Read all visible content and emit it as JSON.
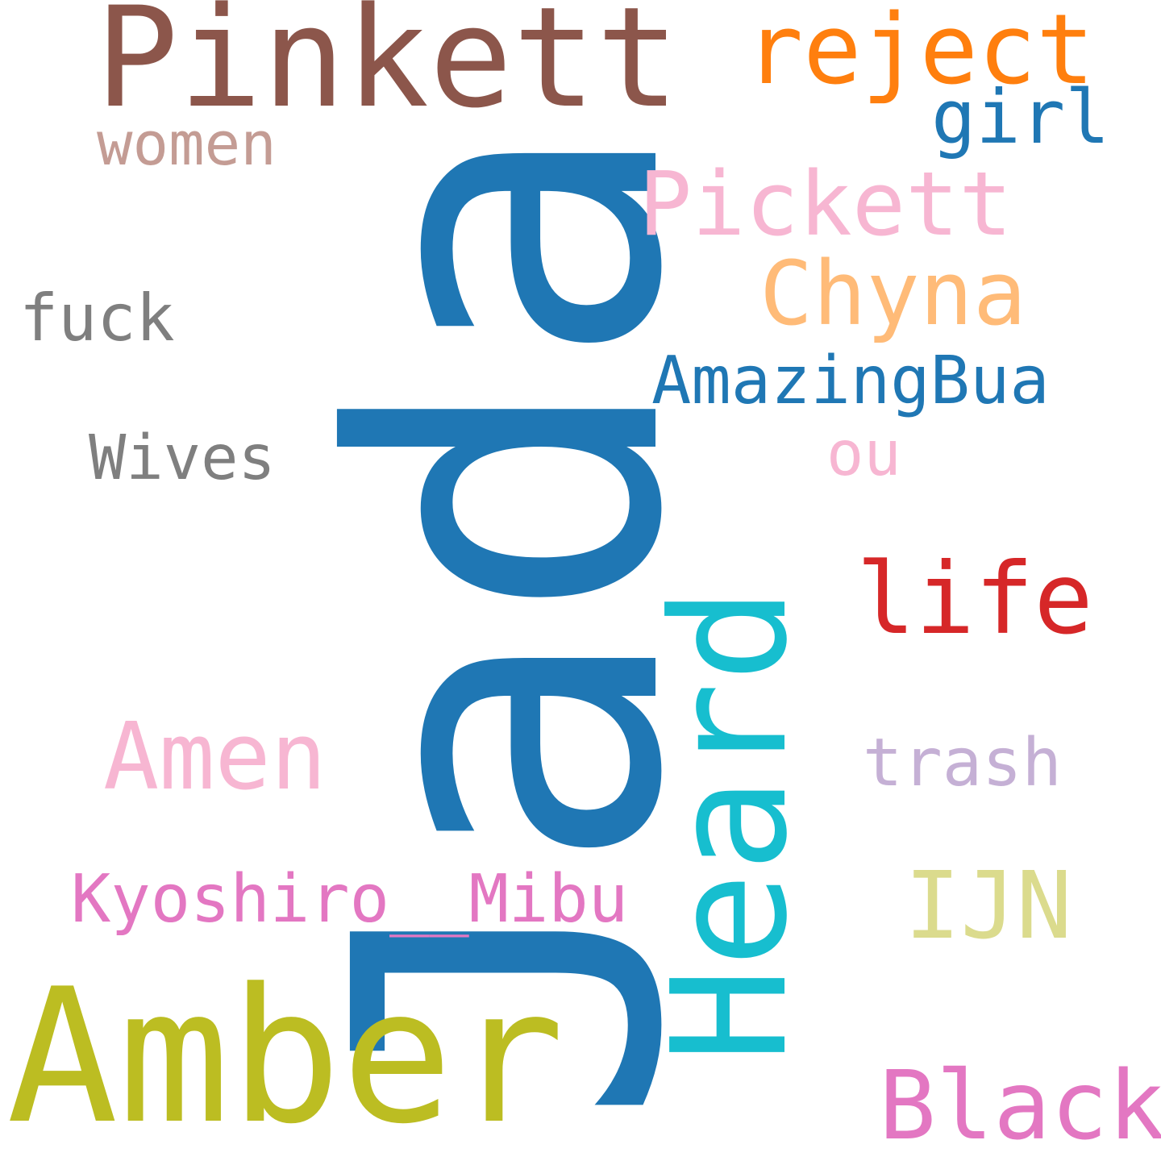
{
  "words": [
    {
      "text": "Jada",
      "color": "#1f77b4",
      "orientation": "vertical"
    },
    {
      "text": "Amber",
      "color": "#bcbd22",
      "orientation": "horizontal"
    },
    {
      "text": "Heard",
      "color": "#17becf",
      "orientation": "vertical"
    },
    {
      "text": "Pinkett",
      "color": "#8c564b",
      "orientation": "horizontal"
    },
    {
      "text": "reject",
      "color": "#ff7f0e",
      "orientation": "horizontal"
    },
    {
      "text": "life",
      "color": "#d62728",
      "orientation": "horizontal"
    },
    {
      "text": "Black",
      "color": "#e377c2",
      "orientation": "horizontal"
    },
    {
      "text": "Pickett",
      "color": "#f7b6d2",
      "orientation": "horizontal"
    },
    {
      "text": "Chyna",
      "color": "#ffbb78",
      "orientation": "horizontal"
    },
    {
      "text": "Amen",
      "color": "#f7b6d2",
      "orientation": "horizontal"
    },
    {
      "text": "IJN",
      "color": "#dbdb8d",
      "orientation": "horizontal"
    },
    {
      "text": "girl",
      "color": "#1f77b4",
      "orientation": "horizontal"
    },
    {
      "text": "AmazingBua",
      "color": "#1f77b4",
      "orientation": "horizontal"
    },
    {
      "text": "Kyoshiro__Mibu",
      "color": "#e377c2",
      "orientation": "horizontal"
    },
    {
      "text": "trash",
      "color": "#c5b0d5",
      "orientation": "horizontal"
    },
    {
      "text": "fuck",
      "color": "#7f7f7f",
      "orientation": "horizontal"
    },
    {
      "text": "Wives",
      "color": "#7f7f7f",
      "orientation": "horizontal"
    },
    {
      "text": "ou",
      "color": "#f7b6d2",
      "orientation": "horizontal"
    },
    {
      "text": "women",
      "color": "#c49c94",
      "orientation": "horizontal"
    }
  ]
}
